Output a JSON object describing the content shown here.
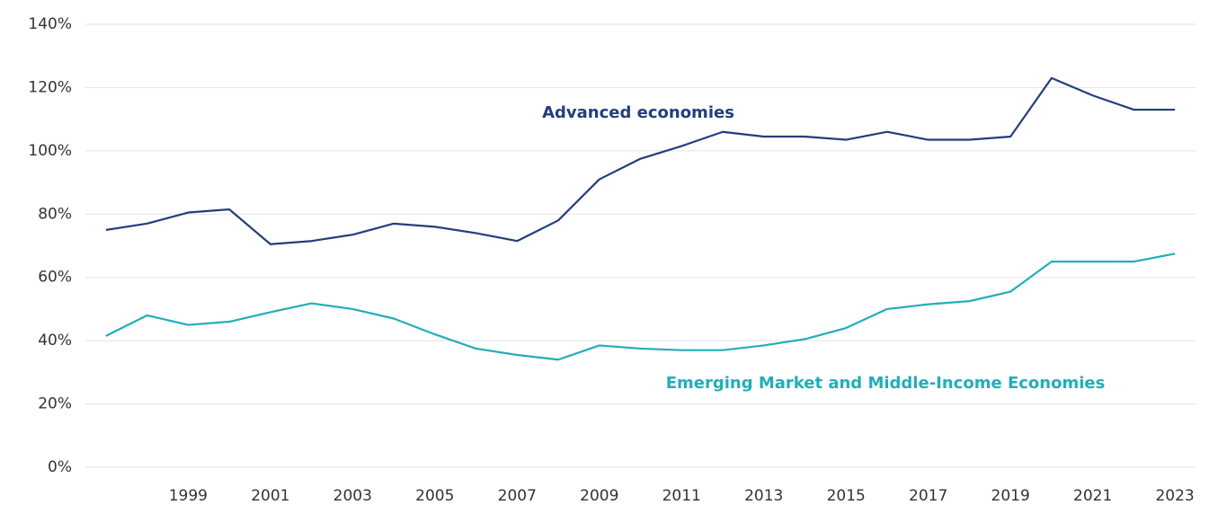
{
  "chart_data": {
    "type": "line",
    "x": [
      1997,
      1998,
      1999,
      2000,
      2001,
      2002,
      2003,
      2004,
      2005,
      2006,
      2007,
      2008,
      2009,
      2010,
      2011,
      2012,
      2013,
      2014,
      2015,
      2016,
      2017,
      2018,
      2019,
      2020,
      2021,
      2022,
      2023
    ],
    "series": [
      {
        "name": "Advanced economies",
        "color": "#243d7c",
        "values": [
          75,
          77,
          80.5,
          81.5,
          70.5,
          71.5,
          73.5,
          77,
          76,
          74,
          71.5,
          78,
          91,
          97.5,
          101.5,
          106,
          104.5,
          104.5,
          103.5,
          106,
          103.5,
          103.5,
          104.5,
          123,
          117.5,
          113,
          113
        ]
      },
      {
        "name": "Emerging Market and Middle-Income Economies",
        "color": "#22aeb8",
        "values": [
          41.5,
          48,
          45,
          46,
          49,
          51.8,
          50,
          47,
          42,
          37.5,
          35.5,
          34,
          38.5,
          37.5,
          37,
          37,
          38.5,
          40.5,
          44,
          50,
          51.5,
          52.5,
          55.5,
          65,
          65,
          65,
          67.5
        ]
      }
    ],
    "xlim": [
      1996.5,
      2023.5
    ],
    "xticks": [
      1999,
      2001,
      2003,
      2005,
      2007,
      2009,
      2011,
      2013,
      2015,
      2017,
      2019,
      2021,
      2023
    ],
    "ylim": [
      0,
      140
    ],
    "yticks": [
      {
        "value": 0,
        "label": "0%"
      },
      {
        "value": 20,
        "label": "20%"
      },
      {
        "value": 40,
        "label": "40%"
      },
      {
        "value": 60,
        "label": "60%"
      },
      {
        "value": 80,
        "label": "80%"
      },
      {
        "value": 100,
        "label": "100%"
      },
      {
        "value": 120,
        "label": "120%"
      },
      {
        "value": 140,
        "label": "140%"
      }
    ],
    "grid": true
  }
}
